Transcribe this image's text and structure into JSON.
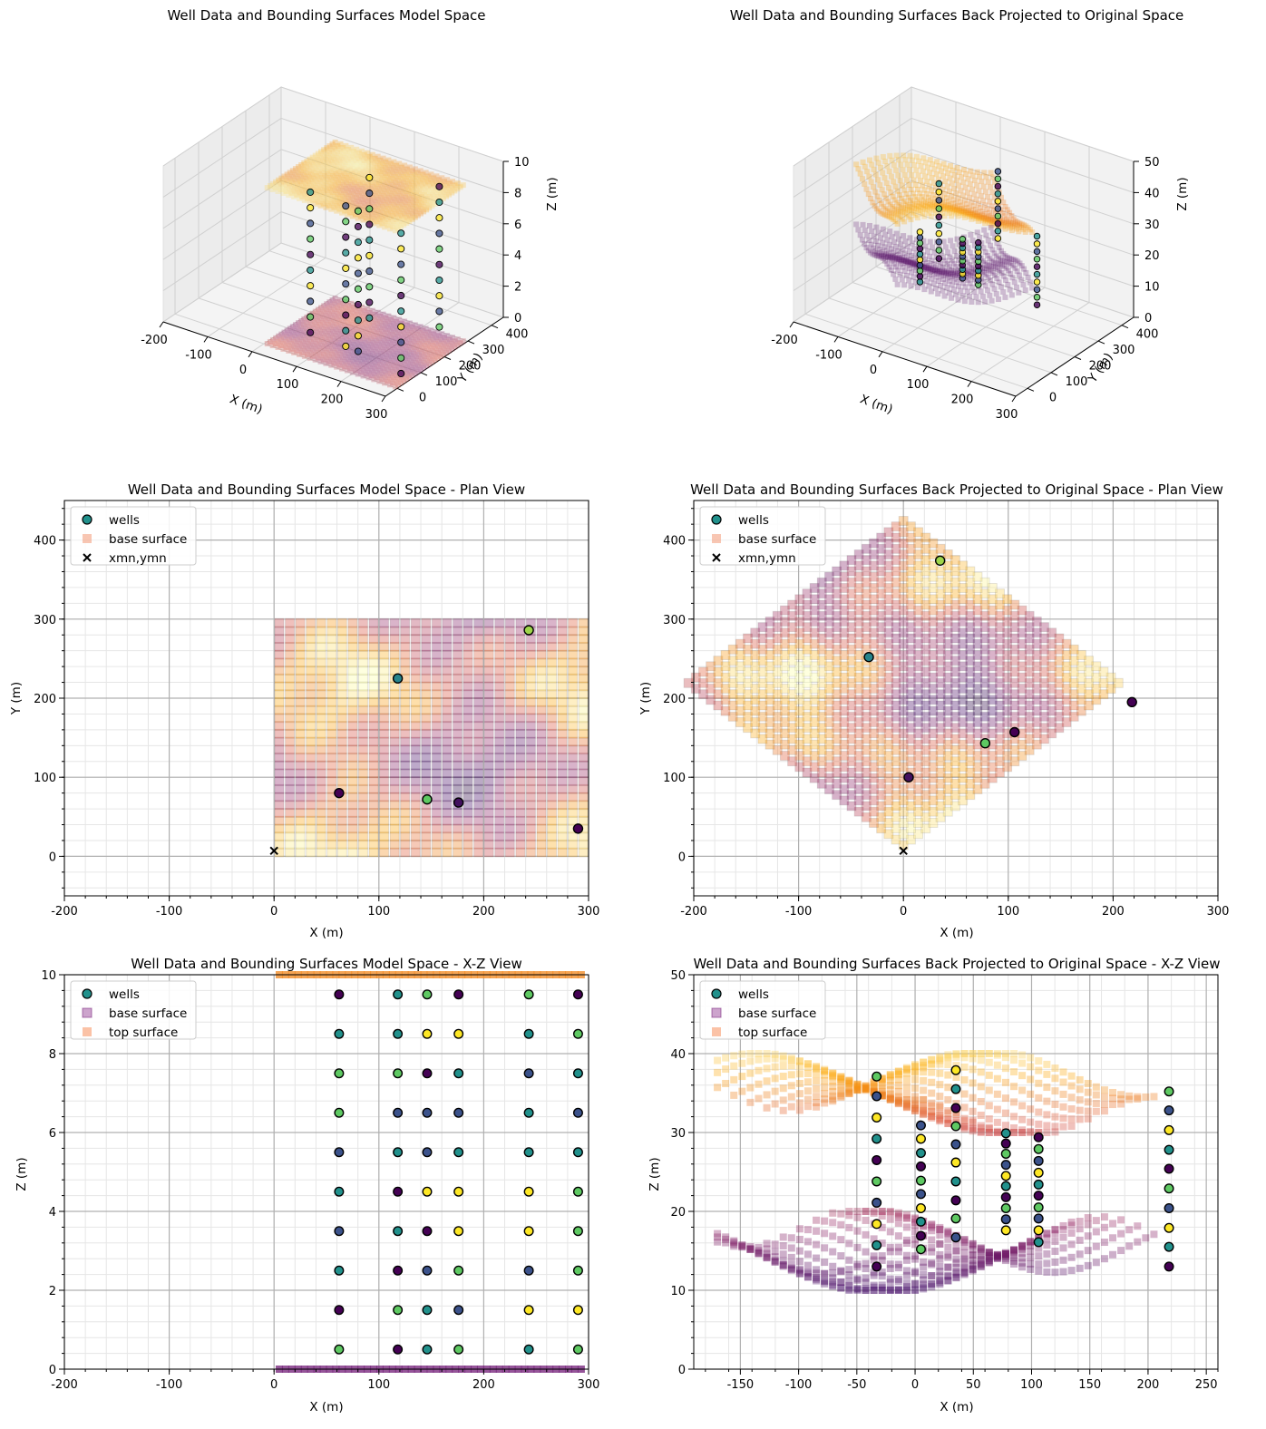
{
  "figure": {
    "palette": {
      "viridis": [
        "#440154",
        "#3b528b",
        "#21918c",
        "#5ec962",
        "#fde725"
      ],
      "inferno": [
        "#000004",
        "#420a68",
        "#932667",
        "#dd513a",
        "#fca50a",
        "#fcffa4"
      ],
      "top": "#f28e2b",
      "base": "#7b2a7f"
    }
  },
  "chart_data": [
    {
      "id": "p1",
      "type": "scatter3d",
      "title": "Well Data and Bounding Surfaces Model Space",
      "xlabel": "X (m)",
      "ylabel": "Y (m)",
      "zlabel": "Z (m)",
      "xticks": [
        -200,
        -100,
        0,
        100,
        200,
        300
      ],
      "yticks": [
        0,
        100,
        200,
        300,
        400
      ],
      "zticks": [
        0,
        2,
        4,
        6,
        8,
        10
      ],
      "xlim": [
        -200,
        300
      ],
      "ylim": [
        -50,
        450
      ],
      "zlim": [
        0,
        10
      ],
      "surfaces": [
        {
          "name": "top surface",
          "z": 10,
          "x": [
            0,
            300
          ],
          "y": [
            0,
            300
          ]
        },
        {
          "name": "base surface",
          "z": 0,
          "x": [
            0,
            300
          ],
          "y": [
            0,
            300
          ]
        }
      ],
      "wells": [
        {
          "x": 62,
          "y": 80,
          "z": [
            0.5,
            1.5,
            2.5,
            3.5,
            4.5,
            5.5,
            6.5,
            7.5,
            8.5,
            9.5
          ]
        },
        {
          "x": 118,
          "y": 225,
          "z": [
            0.5,
            1.5,
            2.5,
            3.5,
            4.5,
            5.5,
            6.5,
            7.5,
            8.5,
            9.5
          ]
        },
        {
          "x": 146,
          "y": 72,
          "z": [
            0.5,
            1.5,
            2.5,
            3.5,
            4.5,
            5.5,
            6.5,
            7.5,
            8.5,
            9.5
          ]
        },
        {
          "x": 176,
          "y": 68,
          "z": [
            0.5,
            1.5,
            2.5,
            3.5,
            4.5,
            5.5,
            6.5,
            7.5,
            8.5,
            9.5
          ]
        },
        {
          "x": 243,
          "y": 286,
          "z": [
            0.5,
            1.5,
            2.5,
            3.5,
            4.5,
            5.5,
            6.5,
            7.5,
            8.5,
            9.5
          ]
        },
        {
          "x": 290,
          "y": 35,
          "z": [
            0.5,
            1.5,
            2.5,
            3.5,
            4.5,
            5.5,
            6.5,
            7.5,
            8.5,
            9.5
          ]
        }
      ]
    },
    {
      "id": "p2",
      "type": "scatter3d",
      "title": "Well Data and Bounding Surfaces Back Projected to Original Space",
      "xlabel": "X (m)",
      "ylabel": "Y (m)",
      "zlabel": "Z (m)",
      "xticks": [
        -200,
        -100,
        0,
        100,
        200,
        300
      ],
      "yticks": [
        0,
        100,
        200,
        300,
        400
      ],
      "zticks": [
        0,
        10,
        20,
        30,
        40,
        50
      ],
      "xlim": [
        -200,
        300
      ],
      "ylim": [
        -50,
        450
      ],
      "zlim": [
        0,
        50
      ],
      "surfaces": [
        {
          "name": "top surface",
          "z_range": [
            30,
            40
          ]
        },
        {
          "name": "base surface",
          "z_range": [
            10,
            20
          ]
        }
      ],
      "wells": [
        {
          "x": -33,
          "y": 252,
          "z_range": [
            13,
            37
          ]
        },
        {
          "x": 5,
          "y": 100,
          "z_range": [
            15,
            31
          ]
        },
        {
          "x": 35,
          "y": 374,
          "z_range": [
            16.5,
            38
          ]
        },
        {
          "x": 78,
          "y": 143,
          "z_range": [
            17.5,
            30
          ]
        },
        {
          "x": 106,
          "y": 157,
          "z_range": [
            16,
            29.5
          ]
        },
        {
          "x": 218,
          "y": 195,
          "z_range": [
            13,
            35
          ]
        }
      ]
    },
    {
      "id": "p3",
      "type": "scatter",
      "title": "Well Data and Bounding Surfaces Model Space - Plan View",
      "xlabel": "X (m)",
      "ylabel": "Y (m)",
      "xlim": [
        -200,
        300
      ],
      "ylim": [
        -50,
        450
      ],
      "xticks": [
        -200,
        -100,
        0,
        100,
        200,
        300
      ],
      "yticks": [
        0,
        100,
        200,
        300,
        400
      ],
      "legend": {
        "placement": "top-left",
        "entries": [
          "wells",
          "base surface",
          "xmn,ymn"
        ]
      },
      "grid_extent": {
        "x": [
          5,
          295
        ],
        "y": [
          5,
          295
        ],
        "step": 10
      },
      "wells": [
        {
          "x": 62,
          "y": 80,
          "c": 0
        },
        {
          "x": 118,
          "y": 225,
          "c": 0.45
        },
        {
          "x": 146,
          "y": 72,
          "c": 0.75
        },
        {
          "x": 176,
          "y": 68,
          "c": 0.05
        },
        {
          "x": 243,
          "y": 286,
          "c": 0.85
        },
        {
          "x": 290,
          "y": 35,
          "c": 0.0
        }
      ],
      "origin": {
        "x": 0,
        "y": 7
      }
    },
    {
      "id": "p4",
      "type": "scatter",
      "title": "Well Data and Bounding Surfaces Back Projected to Original Space - Plan View",
      "xlabel": "X (m)",
      "ylabel": "Y (m)",
      "xlim": [
        -200,
        300
      ],
      "ylim": [
        -50,
        450
      ],
      "xticks": [
        -200,
        -100,
        0,
        100,
        200,
        300
      ],
      "yticks": [
        0,
        100,
        200,
        300,
        400
      ],
      "legend": {
        "placement": "top-left",
        "entries": [
          "wells",
          "base surface",
          "xmn,ymn"
        ]
      },
      "rotation_deg": 45,
      "wells": [
        {
          "x": 35,
          "y": 374,
          "c": 0.85
        },
        {
          "x": -33,
          "y": 252,
          "c": 0.45
        },
        {
          "x": 218,
          "y": 195,
          "c": 0.0
        },
        {
          "x": 106,
          "y": 157,
          "c": 0.0
        },
        {
          "x": 78,
          "y": 143,
          "c": 0.75
        },
        {
          "x": 5,
          "y": 100,
          "c": 0.05
        }
      ],
      "origin": {
        "x": 0,
        "y": 7
      }
    },
    {
      "id": "p5",
      "type": "scatter",
      "title": "Well Data and Bounding Surfaces Model Space - X-Z View",
      "xlabel": "X (m)",
      "ylabel": "Z (m)",
      "xlim": [
        -200,
        300
      ],
      "ylim": [
        0,
        10
      ],
      "xticks": [
        -200,
        -100,
        0,
        100,
        200,
        300
      ],
      "yticks": [
        0,
        2,
        4,
        6,
        8,
        10
      ],
      "legend": {
        "placement": "top-left",
        "entries": [
          "wells",
          "base surface",
          "top surface"
        ]
      },
      "well_x": [
        62,
        118,
        146,
        176,
        243,
        290
      ],
      "well_z": [
        0.5,
        1.5,
        2.5,
        3.5,
        4.5,
        5.5,
        6.5,
        7.5,
        8.5,
        9.5
      ],
      "well_colors": [
        [
          3,
          0,
          2,
          1,
          2,
          1,
          3,
          3,
          2,
          0
        ],
        [
          0,
          3,
          0,
          2,
          0,
          2,
          1,
          3,
          2,
          2
        ],
        [
          2,
          2,
          1,
          0,
          4,
          1,
          1,
          0,
          4,
          3
        ],
        [
          3,
          1,
          3,
          4,
          4,
          2,
          1,
          2,
          4,
          0
        ],
        [
          2,
          4,
          1,
          4,
          4,
          2,
          2,
          1,
          2,
          3
        ],
        [
          3,
          4,
          3,
          3,
          3,
          2,
          1,
          2,
          3,
          0
        ]
      ],
      "top_z": 10,
      "base_z": 0
    },
    {
      "id": "p6",
      "type": "scatter",
      "title": "Well Data and Bounding Surfaces Back Projected to Original Space  - X-Z View",
      "xlabel": "X (m)",
      "ylabel": "Z (m)",
      "xlim": [
        -190,
        260
      ],
      "ylim": [
        0,
        50
      ],
      "xticks": [
        -150,
        -100,
        -50,
        0,
        50,
        100,
        150,
        200,
        250
      ],
      "yticks": [
        0,
        10,
        20,
        30,
        40,
        50
      ],
      "legend": {
        "placement": "top-left",
        "entries": [
          "wells",
          "base surface",
          "top surface"
        ]
      },
      "wells": [
        {
          "x": -33,
          "z": [
            13,
            15.7,
            18.4,
            21.1,
            23.8,
            26.5,
            29.2,
            31.9,
            34.6,
            37.1
          ]
        },
        {
          "x": 5,
          "z": [
            15.2,
            16.9,
            18.7,
            20.4,
            22.2,
            23.9,
            25.7,
            27.4,
            29.2,
            30.9
          ]
        },
        {
          "x": 35,
          "z": [
            16.7,
            19.1,
            21.4,
            23.8,
            26.2,
            28.5,
            30.8,
            33.1,
            35.5,
            37.9
          ]
        },
        {
          "x": 78,
          "z": [
            17.6,
            19,
            20.4,
            21.8,
            23.2,
            24.5,
            25.9,
            27.3,
            28.6,
            29.9
          ]
        },
        {
          "x": 106,
          "z": [
            16.1,
            17.6,
            19.1,
            20.5,
            22,
            23.4,
            24.9,
            26.4,
            27.9,
            29.4
          ]
        },
        {
          "x": 218,
          "z": [
            13,
            15.5,
            17.9,
            20.4,
            22.9,
            25.4,
            27.8,
            30.3,
            32.8,
            35.2
          ]
        }
      ],
      "top_range": [
        30,
        40
      ],
      "base_range": [
        10,
        20
      ]
    }
  ]
}
